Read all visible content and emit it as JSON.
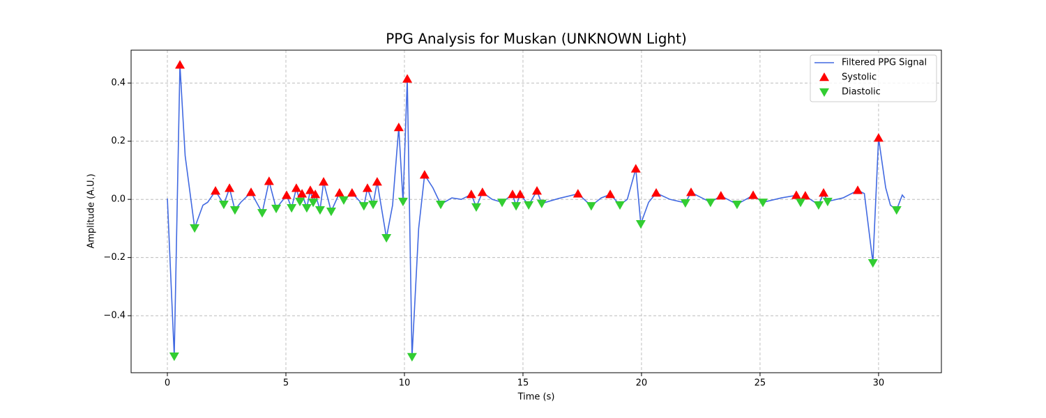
{
  "chart_data": {
    "type": "line",
    "title": "PPG Analysis for Muskan (UNKNOWN Light)",
    "x_label": "Time (s)",
    "y_label": "Amplitude (A.U.)",
    "xlim": [
      -1.53,
      32.65
    ],
    "ylim": [
      -0.596,
      0.513
    ],
    "xticks": [
      0,
      5,
      10,
      15,
      20,
      25,
      30
    ],
    "yticks": [
      {
        "value": -0.4,
        "label": "−0.4"
      },
      {
        "value": -0.2,
        "label": "−0.2"
      },
      {
        "value": 0,
        "label": "0.0"
      },
      0.2,
      0.4
    ],
    "grid": true,
    "legend": "upper right",
    "series": [
      {
        "name": "Filtered PPG Signal",
        "type": "line",
        "color": "#4169e1",
        "x": [
          0,
          0.29,
          0.53,
          0.75,
          1.15,
          1.5,
          1.7,
          2.03,
          2.38,
          2.62,
          2.85,
          3.1,
          3.53,
          4.0,
          4.29,
          4.59,
          5.03,
          5.24,
          5.44,
          5.59,
          5.68,
          5.88,
          6.03,
          6.15,
          6.24,
          6.44,
          6.59,
          6.91,
          7.26,
          7.44,
          7.79,
          8.29,
          8.44,
          8.68,
          8.85,
          9.24,
          9.5,
          9.76,
          9.94,
          10.12,
          10.32,
          10.6,
          10.85,
          11.2,
          11.53,
          12.0,
          12.4,
          12.82,
          13.03,
          13.29,
          13.7,
          14.12,
          14.56,
          14.71,
          14.88,
          15.24,
          15.59,
          15.79,
          16.5,
          17.32,
          17.88,
          18.3,
          18.68,
          19.09,
          19.4,
          19.76,
          19.97,
          20.3,
          20.62,
          21.2,
          21.85,
          22.09,
          22.91,
          23.35,
          24.03,
          24.71,
          25.12,
          25.9,
          26.53,
          26.71,
          26.91,
          27.47,
          27.68,
          27.85,
          28.5,
          29.12,
          29.4,
          29.76,
          30.0,
          30.3,
          30.5,
          30.76,
          31.0,
          31.1
        ],
        "values": [
          0.003,
          -0.539,
          0.462,
          0.15,
          -0.098,
          -0.02,
          -0.01,
          0.029,
          -0.017,
          0.038,
          -0.036,
          -0.01,
          0.024,
          -0.046,
          0.062,
          -0.031,
          0.014,
          -0.029,
          0.038,
          -0.007,
          0.019,
          -0.029,
          0.031,
          -0.01,
          0.017,
          -0.036,
          0.06,
          -0.041,
          0.022,
          -0.002,
          0.022,
          -0.022,
          0.038,
          -0.017,
          0.06,
          -0.132,
          -0.02,
          0.247,
          -0.007,
          0.414,
          -0.541,
          -0.1,
          0.084,
          0.04,
          -0.017,
          0.005,
          0,
          0.017,
          -0.026,
          0.024,
          0,
          -0.01,
          0.017,
          -0.022,
          0.017,
          -0.019,
          0.029,
          -0.014,
          0.003,
          0.019,
          -0.022,
          0.005,
          0.017,
          -0.019,
          0,
          0.105,
          -0.084,
          -0.01,
          0.022,
          0,
          -0.012,
          0.024,
          -0.01,
          0.012,
          -0.017,
          0.014,
          -0.01,
          0.005,
          0.014,
          -0.01,
          0.012,
          -0.019,
          0.022,
          -0.007,
          0.005,
          0.031,
          0.02,
          -0.218,
          0.211,
          0.04,
          -0.02,
          -0.036,
          0.015,
          0.005
        ]
      },
      {
        "name": "Systolic",
        "type": "scatter",
        "marker": "triangle-up",
        "color": "#ff0000",
        "x": [
          0.53,
          2.03,
          2.62,
          3.53,
          4.29,
          5.03,
          5.44,
          5.68,
          6.03,
          6.24,
          6.59,
          7.26,
          7.79,
          8.44,
          8.85,
          9.76,
          10.12,
          10.85,
          12.82,
          13.29,
          14.56,
          14.88,
          15.59,
          17.32,
          18.68,
          19.76,
          20.62,
          22.09,
          23.35,
          24.71,
          26.53,
          26.91,
          27.68,
          29.12,
          30.0
        ],
        "values": [
          0.462,
          0.029,
          0.038,
          0.024,
          0.062,
          0.014,
          0.038,
          0.019,
          0.031,
          0.017,
          0.06,
          0.022,
          0.022,
          0.038,
          0.06,
          0.247,
          0.414,
          0.084,
          0.017,
          0.024,
          0.017,
          0.017,
          0.029,
          0.019,
          0.017,
          0.105,
          0.022,
          0.024,
          0.012,
          0.014,
          0.014,
          0.012,
          0.022,
          0.031,
          0.211
        ]
      },
      {
        "name": "Diastolic",
        "type": "scatter",
        "marker": "triangle-down",
        "color": "#32cd32",
        "x": [
          0.29,
          1.15,
          2.38,
          2.85,
          4.0,
          4.59,
          5.24,
          5.59,
          5.88,
          6.15,
          6.44,
          6.91,
          7.44,
          8.29,
          8.68,
          9.24,
          9.94,
          10.32,
          11.53,
          13.03,
          14.12,
          14.71,
          15.24,
          15.79,
          17.88,
          19.09,
          19.97,
          21.85,
          22.91,
          24.03,
          25.12,
          26.71,
          27.47,
          27.85,
          29.76,
          30.76
        ],
        "values": [
          -0.539,
          -0.098,
          -0.017,
          -0.036,
          -0.046,
          -0.031,
          -0.029,
          -0.007,
          -0.029,
          -0.01,
          -0.036,
          -0.041,
          -0.002,
          -0.022,
          -0.017,
          -0.132,
          -0.007,
          -0.541,
          -0.017,
          -0.026,
          -0.01,
          -0.022,
          -0.019,
          -0.014,
          -0.022,
          -0.019,
          -0.084,
          -0.012,
          -0.01,
          -0.017,
          -0.01,
          -0.01,
          -0.019,
          -0.007,
          -0.218,
          -0.036
        ]
      }
    ]
  }
}
